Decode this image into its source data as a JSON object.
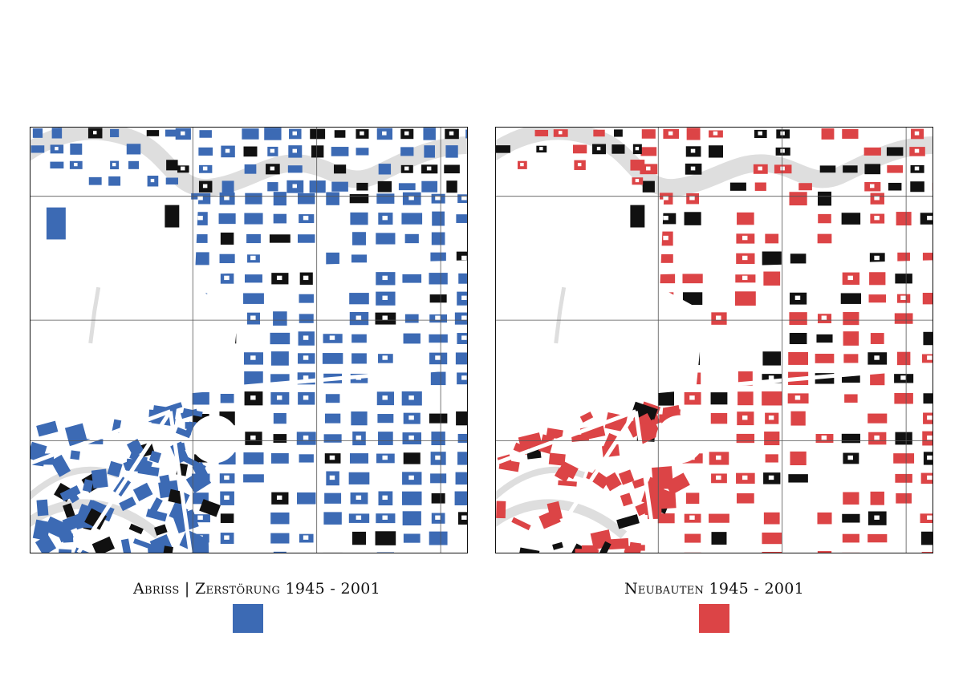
{
  "legend_left": {
    "title": "Abriss | Zerstörung 1945 - 2001",
    "color": "#3c6ab4"
  },
  "legend_right": {
    "title": "Neubauten 1945 - 2001",
    "color": "#dc4446"
  },
  "map_colors": {
    "existing_buildings": "#111111",
    "river": "#dedede",
    "grid": "#555555",
    "frame": "#111111",
    "background": "#ffffff"
  }
}
